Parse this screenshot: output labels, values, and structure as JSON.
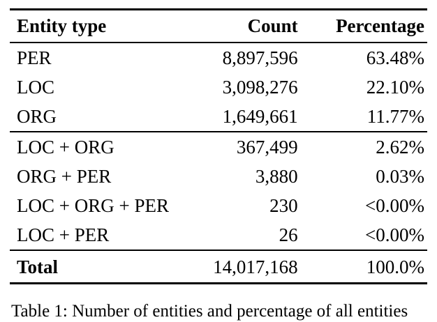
{
  "table": {
    "headers": {
      "type": "Entity type",
      "count": "Count",
      "pct": "Percentage"
    },
    "rows": [
      {
        "type": "PER",
        "count": "8,897,596",
        "pct": "63.48%"
      },
      {
        "type": "LOC",
        "count": "3,098,276",
        "pct": "22.10%"
      },
      {
        "type": "ORG",
        "count": "1,649,661",
        "pct": "11.77%"
      },
      {
        "type": "LOC + ORG",
        "count": "367,499",
        "pct": "2.62%"
      },
      {
        "type": "ORG + PER",
        "count": "3,880",
        "pct": "0.03%"
      },
      {
        "type": "LOC + ORG + PER",
        "count": "230",
        "pct": "<0.00%"
      },
      {
        "type": "LOC + PER",
        "count": "26",
        "pct": "<0.00%"
      },
      {
        "type": "Total",
        "count": "14,017,168",
        "pct": "100.0%"
      }
    ],
    "caption": "Table 1: Number of entities and percentage of all entities"
  }
}
